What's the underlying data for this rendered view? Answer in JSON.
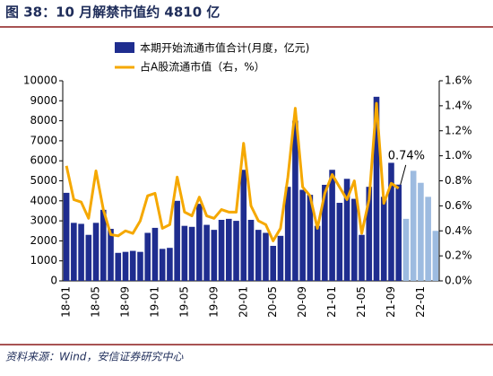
{
  "chart_data": {
    "type": "bar_line",
    "title": "图 38：10 月解禁市值约 4810 亿",
    "source": "资料来源：Wind，安信证券研究中心",
    "annotation": "0.74%",
    "categories": [
      "18-01",
      null,
      null,
      null,
      "18-05",
      null,
      null,
      null,
      "18-09",
      null,
      null,
      null,
      "19-01",
      null,
      null,
      null,
      "19-05",
      null,
      null,
      null,
      "19-09",
      null,
      null,
      null,
      "20-01",
      null,
      null,
      null,
      "20-05",
      null,
      null,
      null,
      "20-09",
      null,
      null,
      null,
      "21-01",
      null,
      null,
      null,
      "21-05",
      null,
      null,
      null,
      "21-09",
      null,
      null,
      null,
      "22-01",
      null,
      null
    ],
    "series": [
      {
        "name": "本期开始流通市值合计(月度，亿元)",
        "color": "#1f2d8f",
        "colors": [
          "#1f2d8f",
          "#1f2d8f",
          "#1f2d8f",
          "#1f2d8f",
          "#1f2d8f",
          "#1f2d8f",
          "#1f2d8f",
          "#1f2d8f",
          "#1f2d8f",
          "#1f2d8f",
          "#1f2d8f",
          "#1f2d8f",
          "#1f2d8f",
          "#1f2d8f",
          "#1f2d8f",
          "#1f2d8f",
          "#1f2d8f",
          "#1f2d8f",
          "#1f2d8f",
          "#1f2d8f",
          "#1f2d8f",
          "#1f2d8f",
          "#1f2d8f",
          "#1f2d8f",
          "#1f2d8f",
          "#1f2d8f",
          "#1f2d8f",
          "#1f2d8f",
          "#1f2d8f",
          "#1f2d8f",
          "#1f2d8f",
          "#1f2d8f",
          "#1f2d8f",
          "#1f2d8f",
          "#1f2d8f",
          "#1f2d8f",
          "#1f2d8f",
          "#1f2d8f",
          "#1f2d8f",
          "#1f2d8f",
          "#1f2d8f",
          "#1f2d8f",
          "#1f2d8f",
          "#1f2d8f",
          "#1f2d8f",
          "#1f2d8f",
          "#9dbbe0",
          "#9dbbe0",
          "#9dbbe0",
          "#9dbbe0",
          "#9dbbe0"
        ],
        "values": [
          4400,
          2900,
          2850,
          2300,
          2900,
          3550,
          2600,
          1400,
          1450,
          1500,
          1450,
          2400,
          2650,
          1600,
          1650,
          4000,
          2750,
          2700,
          3850,
          2800,
          2550,
          3050,
          3100,
          3000,
          5550,
          3050,
          2550,
          2400,
          1750,
          2250,
          4700,
          8000,
          4550,
          4300,
          2750,
          4800,
          5550,
          3900,
          5100,
          4100,
          2300,
          4700,
          9200,
          4200,
          5900,
          4810,
          3100,
          5500,
          4900,
          4200,
          2500
        ]
      },
      {
        "name": "占A股流通市值（右，%）",
        "color": "#f5a800",
        "axis": "y2",
        "values": [
          0.92,
          0.65,
          0.63,
          0.5,
          0.88,
          0.57,
          0.37,
          0.36,
          0.4,
          0.38,
          0.48,
          0.68,
          0.7,
          0.42,
          0.45,
          0.83,
          0.55,
          0.52,
          0.67,
          0.52,
          0.5,
          0.57,
          0.55,
          0.55,
          1.1,
          0.6,
          0.48,
          0.45,
          0.32,
          0.42,
          0.83,
          1.38,
          0.75,
          0.68,
          0.42,
          0.7,
          0.85,
          0.75,
          0.65,
          0.8,
          0.38,
          0.65,
          1.42,
          0.62,
          0.78,
          0.74,
          null,
          null,
          null,
          null,
          null
        ]
      }
    ],
    "ylim": [
      0,
      10000
    ],
    "yticks": [
      0,
      1000,
      2000,
      3000,
      4000,
      5000,
      6000,
      7000,
      8000,
      9000,
      10000
    ],
    "y2lim": [
      0,
      1.6
    ],
    "y2ticks": [
      {
        "value": 0,
        "label": "0.0%"
      },
      {
        "value": 0.2,
        "label": "0.2%"
      },
      {
        "value": 0.4,
        "label": "0.4%"
      },
      {
        "value": 0.6,
        "label": "0.6%"
      },
      {
        "value": 0.8,
        "label": "0.8%"
      },
      {
        "value": 1.0,
        "label": "1.0%"
      },
      {
        "value": 1.2,
        "label": "1.2%"
      },
      {
        "value": 1.4,
        "label": "1.4%"
      },
      {
        "value": 1.6,
        "label": "1.6%"
      }
    ]
  }
}
